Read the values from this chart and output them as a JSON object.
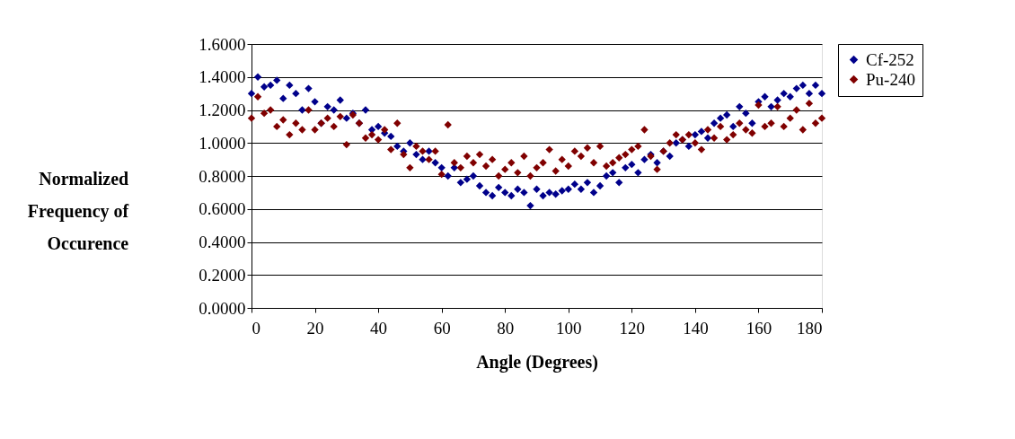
{
  "chart_data": {
    "type": "scatter",
    "xlabel": "Angle (Degrees)",
    "ylabel": "Normalized\nFrequency of\nOccurence",
    "x": [
      0,
      2,
      4,
      6,
      8,
      10,
      12,
      14,
      16,
      18,
      20,
      22,
      24,
      26,
      28,
      30,
      32,
      34,
      36,
      38,
      40,
      42,
      44,
      46,
      48,
      50,
      52,
      54,
      56,
      58,
      60,
      62,
      64,
      66,
      68,
      70,
      72,
      74,
      76,
      78,
      80,
      82,
      84,
      86,
      88,
      90,
      92,
      94,
      96,
      98,
      100,
      102,
      104,
      106,
      108,
      110,
      112,
      114,
      116,
      118,
      120,
      122,
      124,
      126,
      128,
      130,
      132,
      134,
      136,
      138,
      140,
      142,
      144,
      146,
      148,
      150,
      152,
      154,
      156,
      158,
      160,
      162,
      164,
      166,
      168,
      170,
      172,
      174,
      176,
      178,
      180
    ],
    "series": [
      {
        "name": "Cf-252",
        "color": "#00008b",
        "values": [
          1.3,
          1.4,
          1.34,
          1.35,
          1.38,
          1.27,
          1.35,
          1.3,
          1.2,
          1.33,
          1.25,
          1.12,
          1.22,
          1.2,
          1.26,
          1.15,
          1.18,
          1.12,
          1.2,
          1.08,
          1.1,
          1.06,
          1.04,
          0.98,
          0.95,
          1.0,
          0.93,
          0.9,
          0.95,
          0.88,
          0.85,
          0.8,
          0.85,
          0.76,
          0.78,
          0.8,
          0.74,
          0.7,
          0.68,
          0.73,
          0.7,
          0.68,
          0.72,
          0.7,
          0.62,
          0.72,
          0.68,
          0.7,
          0.69,
          0.71,
          0.72,
          0.75,
          0.72,
          0.76,
          0.7,
          0.74,
          0.8,
          0.82,
          0.76,
          0.85,
          0.87,
          0.82,
          0.9,
          0.93,
          0.88,
          0.95,
          0.92,
          1.0,
          1.02,
          0.98,
          1.05,
          1.07,
          1.03,
          1.12,
          1.15,
          1.17,
          1.1,
          1.22,
          1.18,
          1.12,
          1.25,
          1.28,
          1.22,
          1.26,
          1.3,
          1.28,
          1.33,
          1.35,
          1.3,
          1.35,
          1.3
        ]
      },
      {
        "name": "Pu-240",
        "color": "#800000",
        "values": [
          1.15,
          1.28,
          1.18,
          1.2,
          1.1,
          1.14,
          1.05,
          1.12,
          1.08,
          1.2,
          1.08,
          1.12,
          1.15,
          1.1,
          1.16,
          0.99,
          1.17,
          1.12,
          1.03,
          1.05,
          1.02,
          1.08,
          0.96,
          1.12,
          0.93,
          0.85,
          0.98,
          0.95,
          0.9,
          0.95,
          0.81,
          1.11,
          0.88,
          0.85,
          0.92,
          0.88,
          0.93,
          0.86,
          0.9,
          0.8,
          0.84,
          0.88,
          0.82,
          0.92,
          0.8,
          0.85,
          0.88,
          0.96,
          0.83,
          0.9,
          0.86,
          0.95,
          0.92,
          0.97,
          0.88,
          0.98,
          0.86,
          0.88,
          0.91,
          0.93,
          0.96,
          0.98,
          1.08,
          0.92,
          0.84,
          0.95,
          1.0,
          1.05,
          1.02,
          1.05,
          1.0,
          0.96,
          1.08,
          1.03,
          1.1,
          1.02,
          1.05,
          1.12,
          1.08,
          1.06,
          1.23,
          1.1,
          1.12,
          1.22,
          1.1,
          1.15,
          1.2,
          1.08,
          1.24,
          1.12,
          1.15
        ]
      }
    ],
    "xlim": [
      0,
      180
    ],
    "xticks": [
      0,
      20,
      40,
      60,
      80,
      100,
      120,
      140,
      160,
      180
    ],
    "ylim": [
      0,
      1.6
    ],
    "yticks": [
      {
        "value": 0,
        "label": "0.0000"
      },
      {
        "value": 0.2,
        "label": "0.2000"
      },
      {
        "value": 0.4,
        "label": "0.4000"
      },
      {
        "value": 0.6,
        "label": "0.6000"
      },
      {
        "value": 0.8,
        "label": "0.8000"
      },
      {
        "value": 1.0,
        "label": "1.0000"
      },
      {
        "value": 1.2,
        "label": "1.2000"
      },
      {
        "value": 1.4,
        "label": "1.4000"
      },
      {
        "value": 1.6,
        "label": "1.6000"
      }
    ],
    "grid": "y",
    "legend": "right",
    "marker": "diamond"
  }
}
